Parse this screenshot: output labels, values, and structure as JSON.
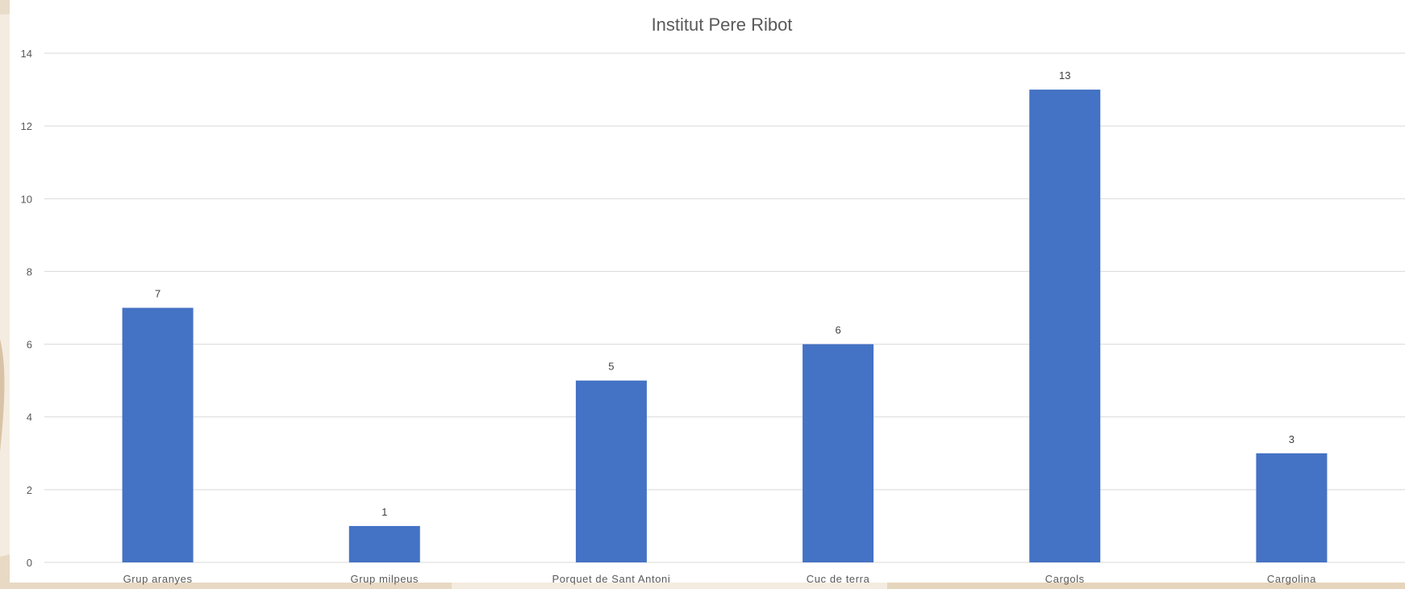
{
  "chart_data": {
    "type": "bar",
    "title": "Institut Pere Ribot",
    "categories": [
      "Grup aranyes",
      "Grup milpeus",
      "Porquet de Sant Antoni",
      "Cuc de terra",
      "Cargols",
      "Cargolina"
    ],
    "values": [
      7,
      1,
      5,
      6,
      13,
      3
    ],
    "data_labels": true,
    "ylim": [
      0,
      14
    ],
    "yticks": [
      0,
      2,
      4,
      6,
      8,
      10,
      12,
      14
    ],
    "grid": true,
    "legend": "none",
    "bar_color": "#4472c4"
  }
}
